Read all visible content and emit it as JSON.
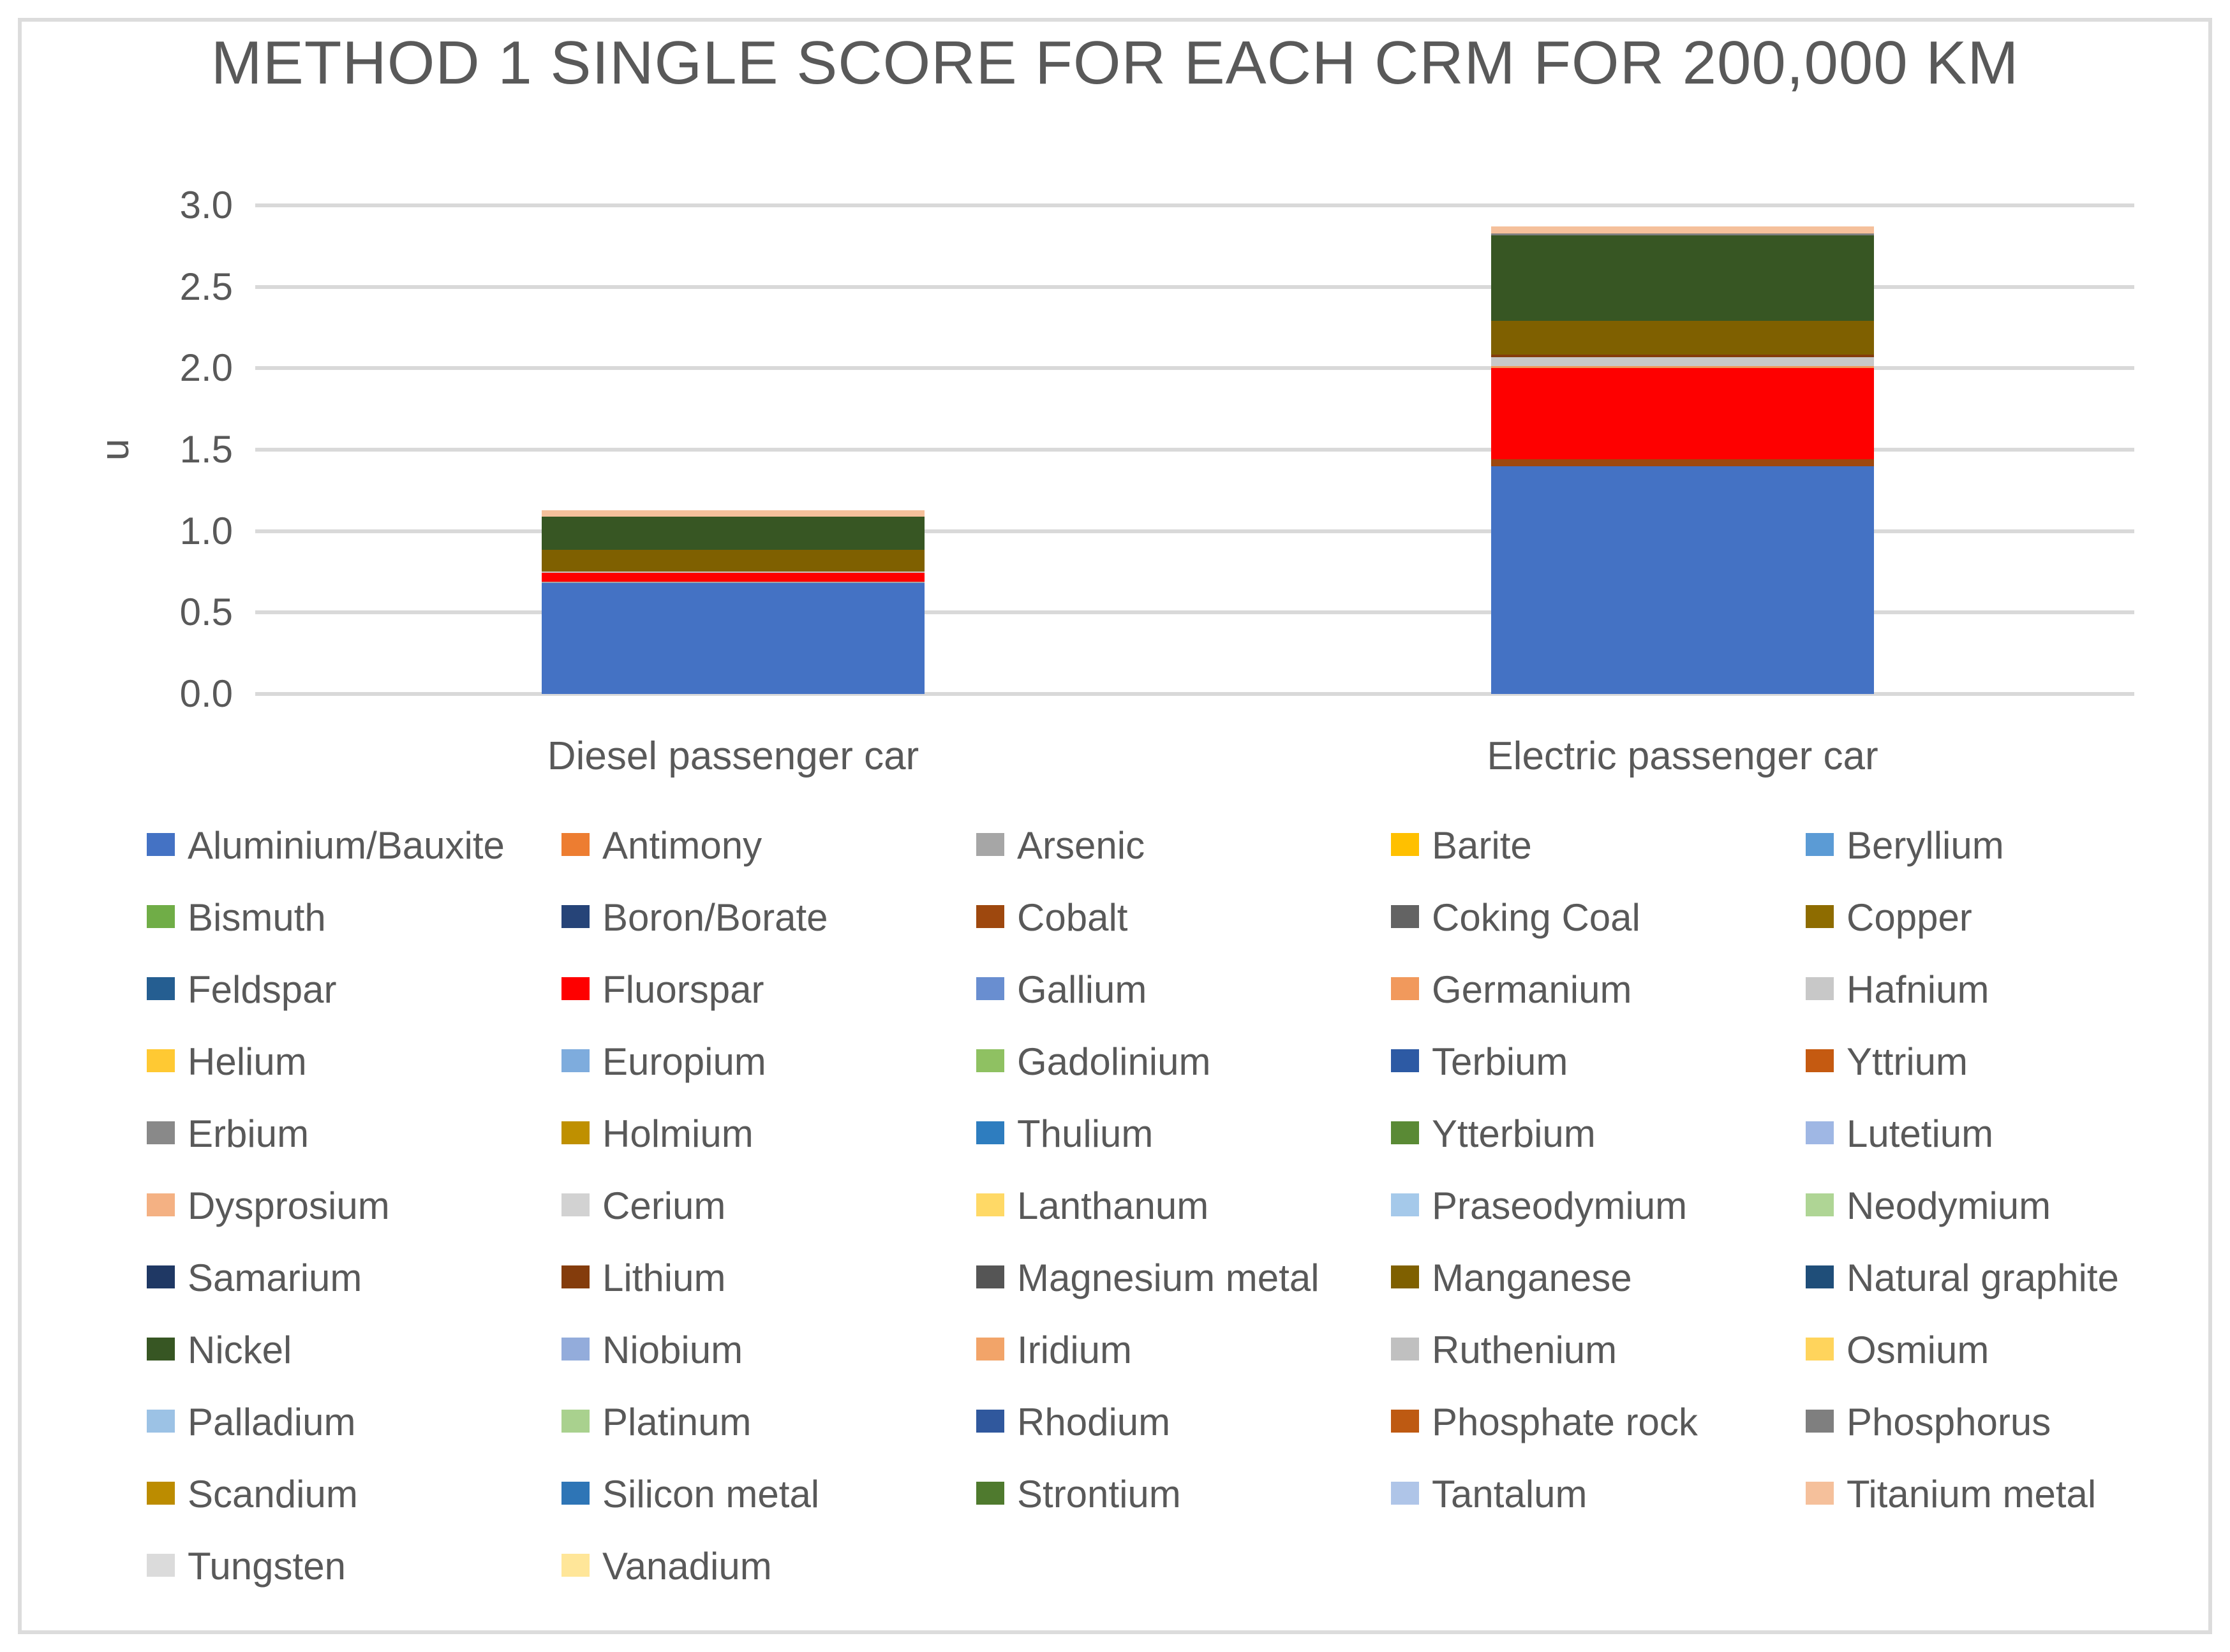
{
  "title": "METHOD 1 SINGLE SCORE FOR EACH CRM FOR 200,000 KM",
  "y_axis": {
    "label": "u",
    "ticks": [
      "3.0",
      "2.5",
      "2.0",
      "1.5",
      "1.0",
      "0.5",
      "0.0"
    ]
  },
  "chart_data": {
    "type": "bar",
    "stacked": true,
    "title": "METHOD 1 SINGLE SCORE FOR EACH CRM FOR 200,000 KM",
    "xlabel": "",
    "ylabel": "u",
    "ylim": [
      0,
      3.0
    ],
    "ytick_step": 0.5,
    "grid": true,
    "legend_position": "bottom",
    "legend_columns": 5,
    "categories": [
      "Diesel passenger car",
      "Electric passenger car"
    ],
    "category_totals": [
      1.13,
      2.87
    ],
    "series": [
      {
        "name": "Aluminium/Bauxite",
        "color": "#4472C4",
        "values": [
          0.68,
          1.4
        ]
      },
      {
        "name": "Antimony",
        "color": "#ED7D31",
        "values": [
          0,
          0
        ]
      },
      {
        "name": "Arsenic",
        "color": "#A6A6A6",
        "values": [
          0.01,
          0
        ]
      },
      {
        "name": "Barite",
        "color": "#FFC000",
        "values": [
          0,
          0
        ]
      },
      {
        "name": "Beryllium",
        "color": "#5B9BD5",
        "values": [
          0,
          0
        ]
      },
      {
        "name": "Bismuth",
        "color": "#70AD47",
        "values": [
          0,
          0
        ]
      },
      {
        "name": "Boron/Borate",
        "color": "#264478",
        "values": [
          0,
          0
        ]
      },
      {
        "name": "Cobalt",
        "color": "#9E480E",
        "values": [
          0,
          0.04
        ]
      },
      {
        "name": "Coking Coal",
        "color": "#636363",
        "values": [
          0,
          0
        ]
      },
      {
        "name": "Copper",
        "color": "#8E6C00",
        "values": [
          0,
          0
        ]
      },
      {
        "name": "Feldspar",
        "color": "#255E91",
        "values": [
          0,
          0
        ]
      },
      {
        "name": "Fluorspar",
        "color": "#FE0000",
        "values": [
          0.055,
          0.56
        ]
      },
      {
        "name": "Gallium",
        "color": "#698ED0",
        "values": [
          0,
          0
        ]
      },
      {
        "name": "Germanium",
        "color": "#F1995C",
        "values": [
          0,
          0.012
        ]
      },
      {
        "name": "Hafnium",
        "color": "#C8C8C8",
        "values": [
          0.008,
          0.055
        ]
      },
      {
        "name": "Helium",
        "color": "#FFC933",
        "values": [
          0,
          0
        ]
      },
      {
        "name": "Europium",
        "color": "#7EACDD",
        "values": [
          0,
          0
        ]
      },
      {
        "name": "Gadolinium",
        "color": "#8FC162",
        "values": [
          0,
          0
        ]
      },
      {
        "name": "Terbium",
        "color": "#2D5AA4",
        "values": [
          0,
          0
        ]
      },
      {
        "name": "Yttrium",
        "color": "#C55A11",
        "values": [
          0,
          0
        ]
      },
      {
        "name": "Erbium",
        "color": "#898989",
        "values": [
          0,
          0
        ]
      },
      {
        "name": "Holmium",
        "color": "#BF9000",
        "values": [
          0,
          0
        ]
      },
      {
        "name": "Thulium",
        "color": "#2E7DBF",
        "values": [
          0,
          0
        ]
      },
      {
        "name": "Ytterbium",
        "color": "#5A8A35",
        "values": [
          0,
          0
        ]
      },
      {
        "name": "Lutetium",
        "color": "#9FB7E4",
        "values": [
          0,
          0
        ]
      },
      {
        "name": "Dysprosium",
        "color": "#F4B183",
        "values": [
          0,
          0
        ]
      },
      {
        "name": "Cerium",
        "color": "#D2D2D2",
        "values": [
          0,
          0
        ]
      },
      {
        "name": "Lanthanum",
        "color": "#FFD966",
        "values": [
          0,
          0
        ]
      },
      {
        "name": "Praseodymium",
        "color": "#A5C9EA",
        "values": [
          0,
          0
        ]
      },
      {
        "name": "Neodymium",
        "color": "#AFD595",
        "values": [
          0,
          0
        ]
      },
      {
        "name": "Samarium",
        "color": "#1F3864",
        "values": [
          0,
          0
        ]
      },
      {
        "name": "Lithium",
        "color": "#843C0C",
        "values": [
          0,
          0.016
        ]
      },
      {
        "name": "Magnesium metal",
        "color": "#555555",
        "values": [
          0,
          0
        ]
      },
      {
        "name": "Manganese",
        "color": "#7F6000",
        "values": [
          0.133,
          0.207
        ]
      },
      {
        "name": "Natural graphite",
        "color": "#1F4E79",
        "values": [
          0,
          0
        ]
      },
      {
        "name": "Nickel",
        "color": "#375623",
        "values": [
          0.203,
          0.527
        ]
      },
      {
        "name": "Niobium",
        "color": "#93ACDB",
        "values": [
          0,
          0
        ]
      },
      {
        "name": "Iridium",
        "color": "#F2A469",
        "values": [
          0,
          0
        ]
      },
      {
        "name": "Ruthenium",
        "color": "#C0C0C0",
        "values": [
          0,
          0
        ]
      },
      {
        "name": "Osmium",
        "color": "#FFD45C",
        "values": [
          0,
          0
        ]
      },
      {
        "name": "Palladium",
        "color": "#9CC2E5",
        "values": [
          0,
          0
        ]
      },
      {
        "name": "Platinum",
        "color": "#A9D18E",
        "values": [
          0,
          0
        ]
      },
      {
        "name": "Rhodium",
        "color": "#30589D",
        "values": [
          0,
          0
        ]
      },
      {
        "name": "Phosphate rock",
        "color": "#BE5A12",
        "values": [
          0,
          0
        ]
      },
      {
        "name": "Phosphorus",
        "color": "#7F7F7F",
        "values": [
          0,
          0.012
        ]
      },
      {
        "name": "Scandium",
        "color": "#BC8C00",
        "values": [
          0,
          0
        ]
      },
      {
        "name": "Silicon metal",
        "color": "#2E75B6",
        "values": [
          0,
          0
        ]
      },
      {
        "name": "Strontium",
        "color": "#4F7A2E",
        "values": [
          0,
          0
        ]
      },
      {
        "name": "Tantalum",
        "color": "#AFC5E8",
        "values": [
          0,
          0
        ]
      },
      {
        "name": "Titanium metal",
        "color": "#F5C09B",
        "values": [
          0.039,
          0.04
        ]
      },
      {
        "name": "Tungsten",
        "color": "#DBDBDB",
        "values": [
          0,
          0
        ]
      },
      {
        "name": "Vanadium",
        "color": "#FFE699",
        "values": [
          0,
          0
        ]
      }
    ]
  }
}
